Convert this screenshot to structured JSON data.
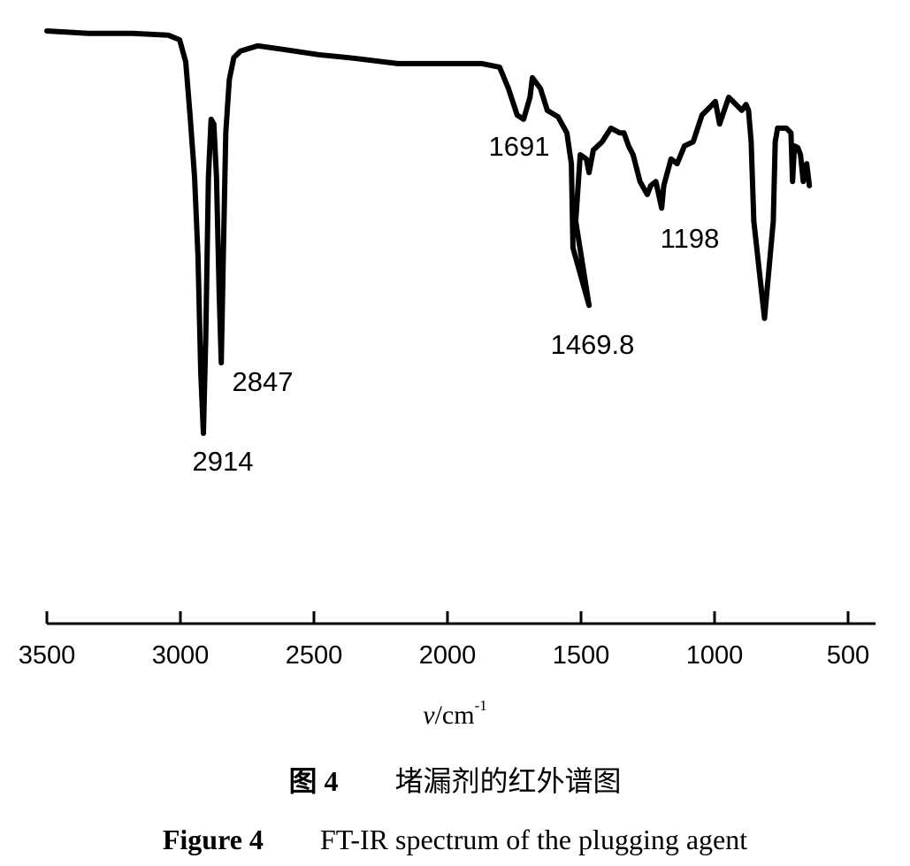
{
  "chart_data": {
    "type": "line",
    "title": "",
    "xlabel": "ν/cm⁻¹",
    "xlabel_parts": {
      "symbol": "ν",
      "unit": "/cm",
      "exp": "-1"
    },
    "ylabel": "",
    "xlim": [
      3500,
      397
    ],
    "x_reversed": true,
    "ylim": [
      0,
      100
    ],
    "grid": false,
    "y_axis_shown": false,
    "line_color": "#000000",
    "xticks": [
      3500,
      3000,
      2500,
      2000,
      1500,
      1000,
      500
    ],
    "xtick_labels": [
      "3500",
      "3000",
      "2500",
      "2000",
      "1500",
      "1000",
      "500"
    ],
    "series": [
      {
        "x": [
          3500,
          3344,
          3179,
          3046,
          3003,
          2980,
          2964,
          2947,
          2934,
          2924,
          2914,
          2905,
          2895,
          2885,
          2875,
          2865,
          2855,
          2847,
          2840,
          2830,
          2817,
          2800,
          2775,
          2710,
          2616,
          2483,
          2351,
          2186,
          2020,
          1871,
          1805,
          1772,
          1739,
          1715,
          1691,
          1682,
          1652,
          1626,
          1586,
          1553,
          1536,
          1530,
          1469.8,
          1520,
          1503,
          1480,
          1470,
          1454,
          1421,
          1388,
          1355,
          1339,
          1322,
          1305,
          1279,
          1252,
          1239,
          1220,
          1198,
          1190,
          1163,
          1140,
          1113,
          1080,
          1047,
          1014,
          997,
          981,
          947,
          931,
          898,
          882,
          873,
          863,
          853,
          813,
          780,
          773,
          764,
          731,
          714,
          708,
          701,
          688,
          678,
          668,
          655,
          645
        ],
        "y": [
          100,
          99.6,
          99.6,
          99.3,
          98.5,
          94.8,
          85.8,
          75.4,
          61.9,
          42.5,
          32.1,
          48.5,
          75.4,
          85.1,
          84.3,
          75.4,
          56,
          44,
          60.4,
          82.8,
          91.8,
          95.5,
          96.6,
          97.5,
          96.9,
          96,
          95.4,
          94.5,
          94.5,
          94.5,
          93.9,
          90.3,
          85.8,
          85.1,
          88.8,
          92.1,
          90.3,
          86.6,
          85.5,
          82.8,
          77.6,
          63.4,
          53.7,
          67.9,
          79.1,
          78.4,
          76.1,
          79.9,
          81.3,
          83.6,
          82.8,
          82.8,
          80.6,
          79.1,
          74.6,
          72.4,
          73.9,
          74.6,
          70.1,
          73.9,
          78.4,
          77.6,
          80.6,
          81.3,
          85.8,
          87.3,
          88.1,
          84.3,
          88.8,
          88.1,
          86.6,
          87.6,
          86.6,
          81.3,
          67.9,
          51.5,
          67.9,
          81.3,
          83.6,
          83.6,
          82.8,
          74.6,
          80.6,
          80.3,
          79.1,
          74.6,
          77.6,
          73.9
        ]
      }
    ],
    "annotations": [
      {
        "text": "2914",
        "x": 2914
      },
      {
        "text": "2847",
        "x": 2847
      },
      {
        "text": "1691",
        "x": 1691
      },
      {
        "text": "1469.8",
        "x": 1469.8
      },
      {
        "text": "1198",
        "x": 1198
      }
    ]
  },
  "caption": {
    "cn_label": "图 4",
    "cn_text": "堵漏剂的红外谱图",
    "en_label": "Figure 4",
    "en_text": "FT-IR spectrum of the plugging agent"
  }
}
